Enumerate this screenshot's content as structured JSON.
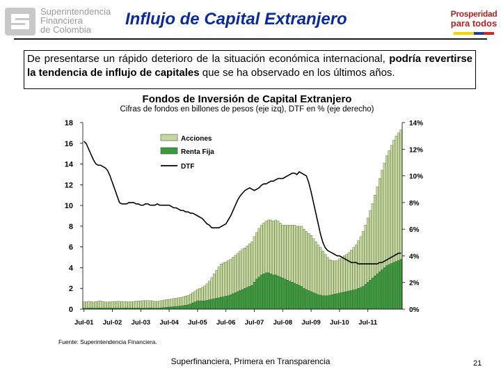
{
  "header": {
    "org_name": [
      "Superintendencia",
      "Financiera",
      "de Colombia"
    ],
    "title": "Influjo de Capital Extranjero",
    "right_logo": [
      "Prosperidad",
      "para todos"
    ]
  },
  "intro": {
    "part1": "De presentarse un rápido deterioro de la situación económica internacional, ",
    "bold": "podría revertirse la tendencia de influjo de capitales",
    "part2": " que se ha observado en los últimos años."
  },
  "footer": {
    "text": "Superfinanciera, Primera en Transparencia",
    "page": "21"
  },
  "chart_data": {
    "type": "bar",
    "title": "Fondos de Inversión de Capital Extranjero",
    "subtitle": "Cifras de fondos en billones de pesos (eje izq), DTF en % (eje derecho)",
    "source": "Fuente: Superintendencia Financiera.",
    "x_ticks": [
      "Jul-01",
      "Jul-02",
      "Jul-03",
      "Jul-04",
      "Jul-05",
      "Jul-06",
      "Jul-07",
      "Jul-08",
      "Jul-09",
      "Jul-10",
      "Jul-11"
    ],
    "y_left_ticks": [
      "0",
      "2",
      "4",
      "6",
      "8",
      "10",
      "12",
      "14",
      "16",
      "18"
    ],
    "y_right_ticks": [
      "0%",
      "2%",
      "4%",
      "6%",
      "8%",
      "10%",
      "12%",
      "14%"
    ],
    "ylim_left": [
      0,
      18
    ],
    "ylim_right": [
      0,
      14
    ],
    "legend": [
      "Acciones",
      "Renta Fija",
      "DTF"
    ],
    "colors": {
      "acciones": "#c6d7a0",
      "renta_fija": "#3f9a3f",
      "dtf": "#000000",
      "bar_edge": "#3d5a2a"
    },
    "months_start": "Jul-01",
    "acciones": [
      0.6,
      0.62,
      0.64,
      0.6,
      0.58,
      0.62,
      0.66,
      0.68,
      0.64,
      0.6,
      0.58,
      0.6,
      0.62,
      0.64,
      0.66,
      0.66,
      0.64,
      0.62,
      0.6,
      0.6,
      0.62,
      0.64,
      0.66,
      0.68,
      0.7,
      0.72,
      0.74,
      0.72,
      0.7,
      0.68,
      0.66,
      0.66,
      0.68,
      0.7,
      0.72,
      0.74,
      0.74,
      0.76,
      0.78,
      0.8,
      0.82,
      0.84,
      0.86,
      0.88,
      0.9,
      0.95,
      1.0,
      1.05,
      1.1,
      1.2,
      1.3,
      1.45,
      1.6,
      1.8,
      2.1,
      2.4,
      2.7,
      3.0,
      3.2,
      3.3,
      3.3,
      3.4,
      3.4,
      3.5,
      3.6,
      3.7,
      3.8,
      3.9,
      3.9,
      4.0,
      4.1,
      4.2,
      4.4,
      4.5,
      4.7,
      4.8,
      4.9,
      5.0,
      5.1,
      5.2,
      5.2,
      5.3,
      5.3,
      5.2,
      5.1,
      5.2,
      5.3,
      5.4,
      5.5,
      5.6,
      5.6,
      5.7,
      5.8,
      5.7,
      5.6,
      5.5,
      5.4,
      5.2,
      5.0,
      4.8,
      4.6,
      4.3,
      4.0,
      3.7,
      3.4,
      3.3,
      3.2,
      3.2,
      3.3,
      3.4,
      3.5,
      3.6,
      3.7,
      3.9,
      4.1,
      4.3,
      4.6,
      4.9,
      5.3,
      5.7,
      6.2,
      6.7,
      7.2,
      7.8,
      8.4,
      9.0,
      9.6,
      10.1,
      10.6,
      11.0,
      11.4,
      11.8,
      12.1,
      12.3,
      12.5
    ],
    "renta_fija": [
      0.1,
      0.1,
      0.12,
      0.12,
      0.1,
      0.1,
      0.12,
      0.12,
      0.1,
      0.1,
      0.1,
      0.12,
      0.12,
      0.1,
      0.1,
      0.1,
      0.1,
      0.12,
      0.12,
      0.1,
      0.1,
      0.1,
      0.12,
      0.12,
      0.1,
      0.1,
      0.1,
      0.1,
      0.12,
      0.12,
      0.1,
      0.1,
      0.12,
      0.14,
      0.16,
      0.18,
      0.2,
      0.22,
      0.24,
      0.26,
      0.28,
      0.3,
      0.34,
      0.38,
      0.42,
      0.5,
      0.6,
      0.7,
      0.8,
      0.8,
      0.8,
      0.8,
      0.85,
      0.9,
      0.95,
      1.0,
      1.05,
      1.1,
      1.15,
      1.2,
      1.25,
      1.3,
      1.4,
      1.5,
      1.6,
      1.7,
      1.8,
      1.9,
      2.0,
      2.1,
      2.2,
      2.3,
      2.6,
      2.9,
      3.1,
      3.3,
      3.4,
      3.5,
      3.5,
      3.4,
      3.3,
      3.3,
      3.2,
      3.1,
      3.0,
      2.9,
      2.8,
      2.7,
      2.6,
      2.5,
      2.4,
      2.3,
      2.2,
      2.0,
      1.9,
      1.8,
      1.7,
      1.6,
      1.5,
      1.4,
      1.35,
      1.3,
      1.3,
      1.3,
      1.35,
      1.4,
      1.45,
      1.5,
      1.55,
      1.6,
      1.65,
      1.7,
      1.75,
      1.8,
      1.85,
      1.9,
      2.0,
      2.1,
      2.2,
      2.4,
      2.6,
      2.8,
      3.0,
      3.2,
      3.4,
      3.6,
      3.8,
      4.0,
      4.2,
      4.3,
      4.4,
      4.5,
      4.6,
      4.7,
      4.8
    ],
    "dtf": [
      12.6,
      12.4,
      12.0,
      11.6,
      11.2,
      10.9,
      10.8,
      10.8,
      10.7,
      10.6,
      10.4,
      10.0,
      9.5,
      9.0,
      8.5,
      8.0,
      7.9,
      7.9,
      7.9,
      8.0,
      8.0,
      8.0,
      7.9,
      7.9,
      7.8,
      7.8,
      7.9,
      7.9,
      7.8,
      7.8,
      7.8,
      7.9,
      7.8,
      7.8,
      7.8,
      7.8,
      7.8,
      7.7,
      7.6,
      7.6,
      7.5,
      7.4,
      7.4,
      7.3,
      7.3,
      7.2,
      7.2,
      7.1,
      7.0,
      6.9,
      6.8,
      6.6,
      6.4,
      6.3,
      6.1,
      6.1,
      6.1,
      6.1,
      6.2,
      6.3,
      6.4,
      6.7,
      7.0,
      7.4,
      7.8,
      8.2,
      8.5,
      8.7,
      8.9,
      9.0,
      9.1,
      9.0,
      8.9,
      9.0,
      9.1,
      9.3,
      9.4,
      9.4,
      9.5,
      9.6,
      9.6,
      9.7,
      9.8,
      9.8,
      9.8,
      9.9,
      10.0,
      10.1,
      10.2,
      10.2,
      10.1,
      10.3,
      10.2,
      10.1,
      10.0,
      9.5,
      8.8,
      8.0,
      7.2,
      6.4,
      5.6,
      5.0,
      4.6,
      4.4,
      4.3,
      4.2,
      4.1,
      4.0,
      4.0,
      3.9,
      3.8,
      3.7,
      3.6,
      3.5,
      3.5,
      3.5,
      3.4,
      3.4,
      3.4,
      3.4,
      3.4,
      3.4,
      3.4,
      3.4,
      3.4,
      3.5,
      3.5,
      3.6,
      3.7,
      3.8,
      3.9,
      4.0,
      4.1,
      4.2,
      4.2
    ]
  }
}
